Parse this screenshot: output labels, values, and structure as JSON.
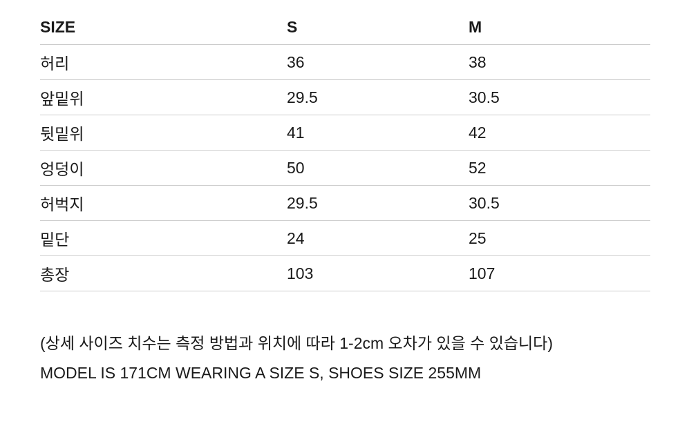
{
  "table": {
    "headers": [
      "SIZE",
      "S",
      "M"
    ],
    "rows": [
      [
        "허리",
        "36",
        "38"
      ],
      [
        "앞밑위",
        "29.5",
        "30.5"
      ],
      [
        "뒷밑위",
        "41",
        "42"
      ],
      [
        "엉덩이",
        "50",
        "52"
      ],
      [
        "허벅지",
        "29.5",
        "30.5"
      ],
      [
        "밑단",
        "24",
        "25"
      ],
      [
        "총장",
        "103",
        "107"
      ]
    ]
  },
  "notes": {
    "measurement_note": "(상세 사이즈 치수는 측정 방법과 위치에 따라 1-2cm 오차가 있을 수 있습니다)",
    "model_note": "MODEL IS 171CM WEARING A SIZE S, SHOES SIZE 255MM"
  }
}
